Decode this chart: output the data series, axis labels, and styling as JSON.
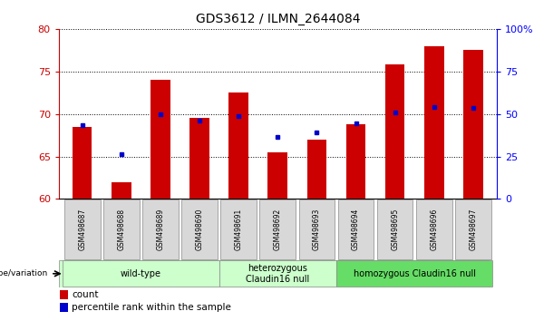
{
  "title": "GDS3612 / ILMN_2644084",
  "samples": [
    "GSM498687",
    "GSM498688",
    "GSM498689",
    "GSM498690",
    "GSM498691",
    "GSM498692",
    "GSM498693",
    "GSM498694",
    "GSM498695",
    "GSM498696",
    "GSM498697"
  ],
  "bar_values": [
    68.5,
    62.0,
    74.0,
    69.5,
    72.5,
    65.5,
    67.0,
    68.8,
    75.8,
    78.0,
    77.5
  ],
  "percentile_values": [
    68.7,
    65.3,
    70.0,
    69.2,
    69.8,
    67.3,
    67.8,
    68.9,
    70.2,
    70.8,
    70.7
  ],
  "y_min": 60,
  "y_max": 80,
  "y_ticks_left": [
    60,
    65,
    70,
    75,
    80
  ],
  "y_ticks_right_vals": [
    0,
    25,
    50,
    75,
    100
  ],
  "y_ticks_right_labels": [
    "0",
    "25",
    "50",
    "75",
    "100%"
  ],
  "bar_color": "#cc0000",
  "percentile_color": "#0000cc",
  "bar_bottom": 60,
  "group_boundaries": [
    {
      "start": 0,
      "end": 3,
      "label": "wild-type",
      "color": "#ccffcc"
    },
    {
      "start": 4,
      "end": 6,
      "label": "heterozygous\nClaudin16 null",
      "color": "#ccffcc"
    },
    {
      "start": 7,
      "end": 10,
      "label": "homozygous Claudin16 null",
      "color": "#66dd66"
    }
  ],
  "genotype_label": "genotype/variation",
  "legend_count_label": "count",
  "legend_percentile_label": "percentile rank within the sample",
  "title_fontsize": 10,
  "bar_width": 0.5
}
